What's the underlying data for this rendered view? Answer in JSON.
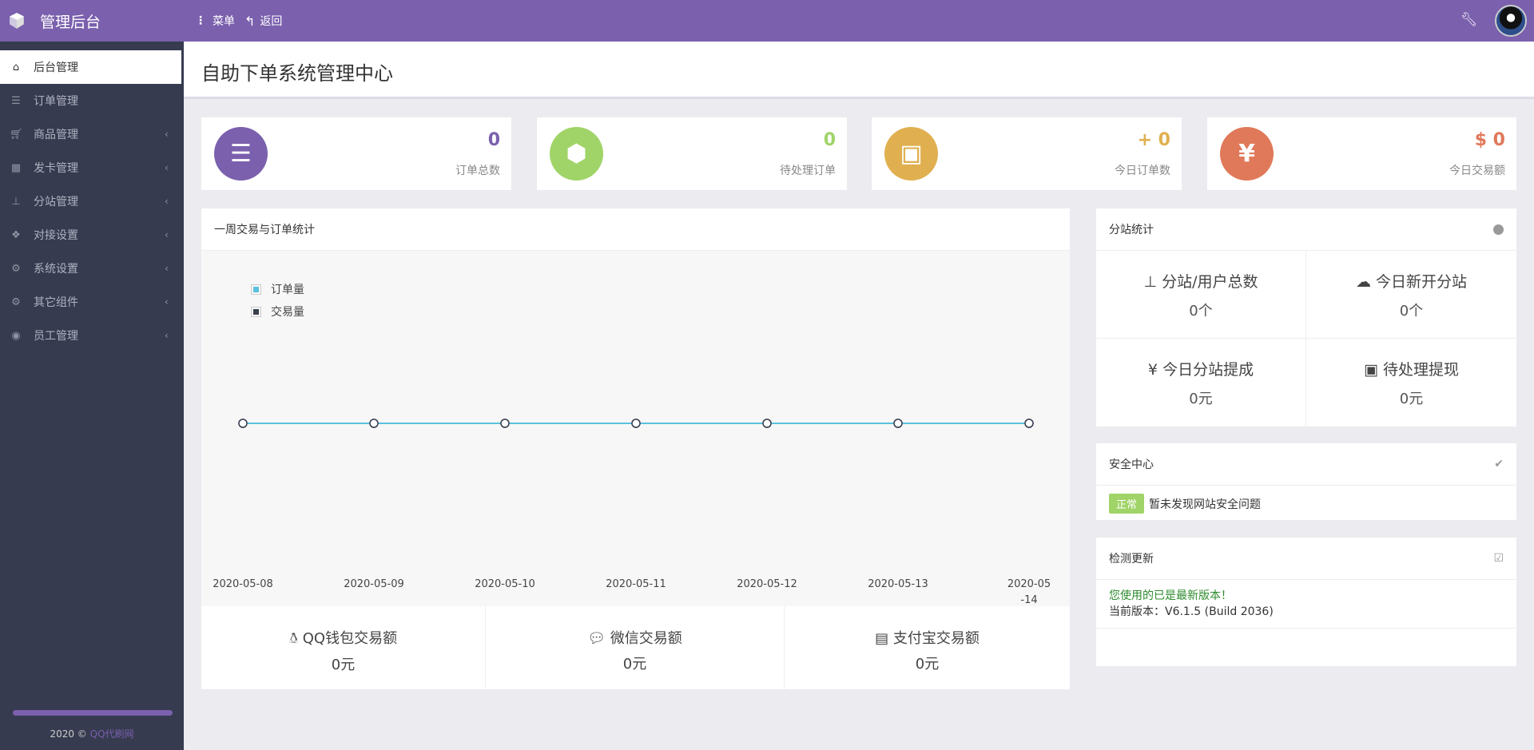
{
  "topbar": {
    "brand": "管理后台",
    "brand_icon": "cube-icon",
    "menu_label": "菜单",
    "back_label": "返回",
    "tools_icon": "wrench-icon",
    "avatar": "qq-penguin-avatar",
    "accent": "#7a60ad"
  },
  "sidebar": {
    "items": [
      {
        "label": "后台管理",
        "icon": "home-icon",
        "active": true
      },
      {
        "label": "订单管理",
        "icon": "list-icon"
      },
      {
        "label": "商品管理",
        "icon": "cart-icon",
        "chevron": true
      },
      {
        "label": "发卡管理",
        "icon": "grid-icon",
        "chevron": true
      },
      {
        "label": "分站管理",
        "icon": "sitemap-icon",
        "chevron": true
      },
      {
        "label": "对接设置",
        "icon": "cubes-icon",
        "chevron": true
      },
      {
        "label": "系统设置",
        "icon": "gear-icon",
        "chevron": true
      },
      {
        "label": "其它组件",
        "icon": "gears-icon",
        "chevron": true
      },
      {
        "label": "员工管理",
        "icon": "user-circle-icon",
        "chevron": true
      }
    ],
    "footer": {
      "year": "2020 ©",
      "link": "QQ代刷网"
    }
  },
  "page": {
    "title": "自助下单系统管理中心"
  },
  "stats": [
    {
      "value": "0",
      "label": "订单总数",
      "color": "#7a60ad",
      "icon": "ordered-list-icon"
    },
    {
      "value": "0",
      "label": "待处理订单",
      "color": "#a0d468",
      "icon": "cube-icon"
    },
    {
      "value": "+ 0",
      "label": "今日订单数",
      "color": "#e0b050",
      "icon": "briefcase-icon"
    },
    {
      "value": "$ 0",
      "label": "今日交易额",
      "color": "#e0795a",
      "icon": "yen-icon"
    }
  ],
  "chart_panel": {
    "title": "一周交易与订单统计",
    "payments": [
      {
        "label": "QQ钱包交易额",
        "value": "0元",
        "icon": "qq-icon"
      },
      {
        "label": "微信交易额",
        "value": "0元",
        "icon": "wechat-icon"
      },
      {
        "label": "支付宝交易额",
        "value": "0元",
        "icon": "credit-card-icon"
      }
    ]
  },
  "chart_data": {
    "type": "line",
    "categories": [
      "2020-05-08",
      "2020-05-09",
      "2020-05-10",
      "2020-05-11",
      "2020-05-12",
      "2020-05-13",
      "2020-05-14"
    ],
    "series": [
      {
        "name": "订单量",
        "values": [
          0,
          0,
          0,
          0,
          0,
          0,
          0
        ],
        "color": "#5bc0de"
      },
      {
        "name": "交易量",
        "values": [
          0,
          0,
          0,
          0,
          0,
          0,
          0
        ],
        "color": "#3a3f51"
      }
    ],
    "legend": "top-left",
    "grid": false
  },
  "substation": {
    "title": "分站统计",
    "cells": [
      {
        "label": "分站/用户总数",
        "value": "0个",
        "icon": "sitemap-icon"
      },
      {
        "label": "今日新开分站",
        "value": "0个",
        "icon": "cloud-icon"
      },
      {
        "label": "今日分站提成",
        "value": "0元",
        "icon": "yen-icon"
      },
      {
        "label": "待处理提现",
        "value": "0元",
        "icon": "money-icon"
      }
    ]
  },
  "security": {
    "title": "安全中心",
    "badge": "正常",
    "message": "暂未发现网站安全问题"
  },
  "update": {
    "title": "检测更新",
    "status": "您使用的已是最新版本！",
    "version": "当前版本：V6.1.5 (Build 2036)"
  }
}
